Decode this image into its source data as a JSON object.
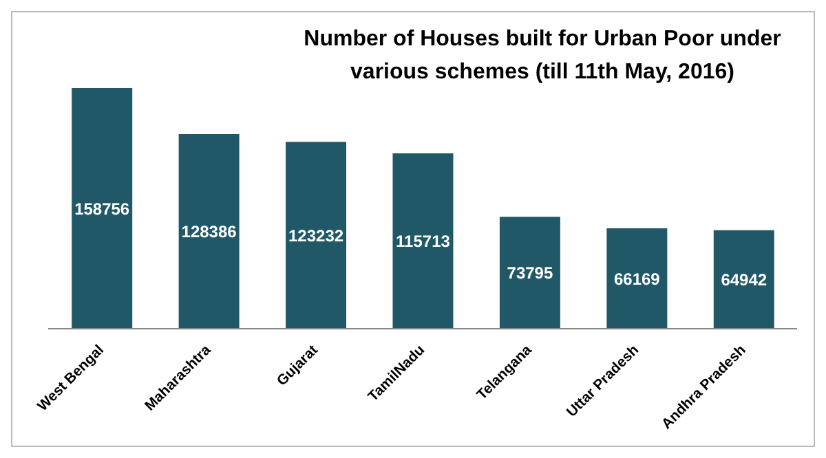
{
  "chart_data": {
    "type": "bar",
    "title": "Number of Houses built for Urban Poor under various schemes (till 11th May, 2016)",
    "categories": [
      "West Bengal",
      "Maharashtra",
      "Gujarat",
      "TamilNadu",
      "Telangana",
      "Uttar Pradesh",
      "Andhra Pradesh"
    ],
    "values": [
      158756,
      128386,
      123232,
      115713,
      73795,
      66169,
      64942
    ],
    "color": "#215868",
    "data_labels": true,
    "grid": false,
    "legend": false
  }
}
